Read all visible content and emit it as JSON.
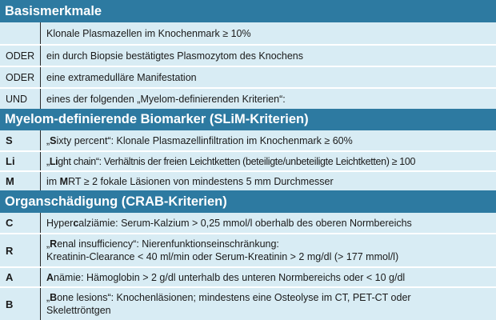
{
  "sections": {
    "basis": {
      "title": "Basismerkmale",
      "rows": [
        {
          "label": "",
          "text": "Klonale Plasmazellen im Knochenmark ≥ 10%"
        },
        {
          "label": "ODER",
          "text": "ein durch Biopsie bestätigtes Plasmozytom des Knochens"
        },
        {
          "label": "ODER",
          "text": "eine extramedulläre Manifestation"
        },
        {
          "label": "UND",
          "text": "eines der folgenden „Myelom-definierenden Kriterien“:"
        }
      ]
    },
    "slim": {
      "title": "Myelom-definierende Biomarker (SLiM-Kriterien)",
      "rows": [
        {
          "label": "S",
          "pre": "„",
          "bold": "S",
          "post": "ixty percent“: Klonale Plasmazellinfiltration im Knochenmark ≥ 60%"
        },
        {
          "label": "Li",
          "pre": "„",
          "bold": "Li",
          "post": "ght chain“: Verhältnis der freien Leichtketten (beteiligte/unbeteiligte Leichtketten) ≥ 100"
        },
        {
          "label": "M",
          "pre": "im ",
          "bold": "M",
          "post": "RT ≥ 2 fokale Läsionen von mindestens 5 mm Durchmesser"
        }
      ]
    },
    "crab": {
      "title": "Organschädigung (CRAB-Kriterien)",
      "rows": [
        {
          "label": "C",
          "pre": "Hyper",
          "bold": "c",
          "post": "alziämie: Serum-Kalzium > 0,25 mmol/l oberhalb des oberen Normbereichs"
        },
        {
          "label": "R",
          "pre": "„",
          "bold": "R",
          "post": "enal insufficiency“: Nierenfunktionseinschränkung:",
          "line2": "Kreatinin-Clearance < 40 ml/min oder Serum-Kreatinin > 2 mg/dl (> 177 mmol/l)"
        },
        {
          "label": "A",
          "pre": "",
          "bold": "A",
          "post": "nämie: Hämoglobin > 2 g/dl unterhalb des unteren Normbereichs oder < 10 g/dl"
        },
        {
          "label": "B",
          "pre": "„",
          "bold": "B",
          "post": "one lesions“: Knochenläsionen; mindestens eine Osteolyse im CT, PET-CT oder",
          "line2": "Skelettröntgen"
        }
      ]
    }
  }
}
